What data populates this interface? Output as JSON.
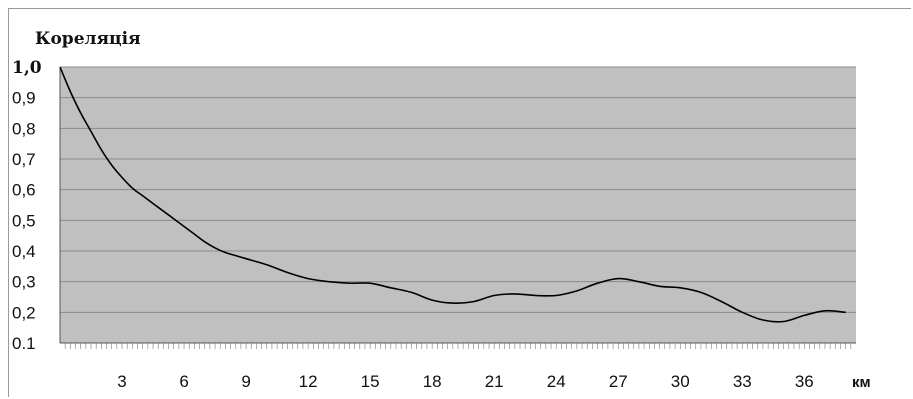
{
  "chart_data": {
    "type": "line",
    "title": "Кореляція",
    "xlabel": "км",
    "ylabel": "",
    "xlim": [
      0,
      38.5
    ],
    "ylim": [
      0.1,
      1.0
    ],
    "grid": true,
    "legend": "none",
    "colors": {
      "plot_bg": "#c0c0c0",
      "line": "#000000",
      "grid": "#8a8a8a"
    },
    "x_ticks": [
      3,
      6,
      9,
      12,
      15,
      18,
      21,
      24,
      27,
      30,
      33,
      36
    ],
    "x_tick_labels": [
      "3",
      "6",
      "9",
      "12",
      "15",
      "18",
      "21",
      "24",
      "27",
      "30",
      "33",
      "36"
    ],
    "y_ticks": [
      0.1,
      0.2,
      0.3,
      0.4,
      0.5,
      0.6,
      0.7,
      0.8,
      0.9,
      1.0
    ],
    "y_tick_labels": [
      "0.1",
      "0,2",
      "0,3",
      "0,4",
      "0,5",
      "0,6",
      "0,7",
      "0,8",
      "0,9",
      "1,0"
    ],
    "series": [
      {
        "x": [
          0,
          0.5,
          1,
          1.5,
          2,
          2.5,
          3,
          3.5,
          4,
          4.5,
          5,
          5.5,
          6,
          6.5,
          7,
          7.5,
          8,
          8.5,
          9,
          10,
          11,
          12,
          13,
          14,
          15,
          16,
          17,
          18,
          19,
          20,
          21,
          22,
          23,
          24,
          25,
          26,
          27,
          28,
          29,
          30,
          31,
          32,
          33,
          34,
          35,
          36,
          37,
          38
        ],
        "y": [
          1.0,
          0.92,
          0.85,
          0.79,
          0.73,
          0.68,
          0.64,
          0.605,
          0.58,
          0.555,
          0.53,
          0.505,
          0.48,
          0.455,
          0.43,
          0.41,
          0.395,
          0.385,
          0.375,
          0.355,
          0.33,
          0.31,
          0.3,
          0.295,
          0.295,
          0.28,
          0.265,
          0.24,
          0.23,
          0.235,
          0.255,
          0.26,
          0.255,
          0.255,
          0.27,
          0.295,
          0.31,
          0.3,
          0.285,
          0.28,
          0.265,
          0.235,
          0.2,
          0.175,
          0.17,
          0.19,
          0.205,
          0.2
        ]
      }
    ]
  }
}
